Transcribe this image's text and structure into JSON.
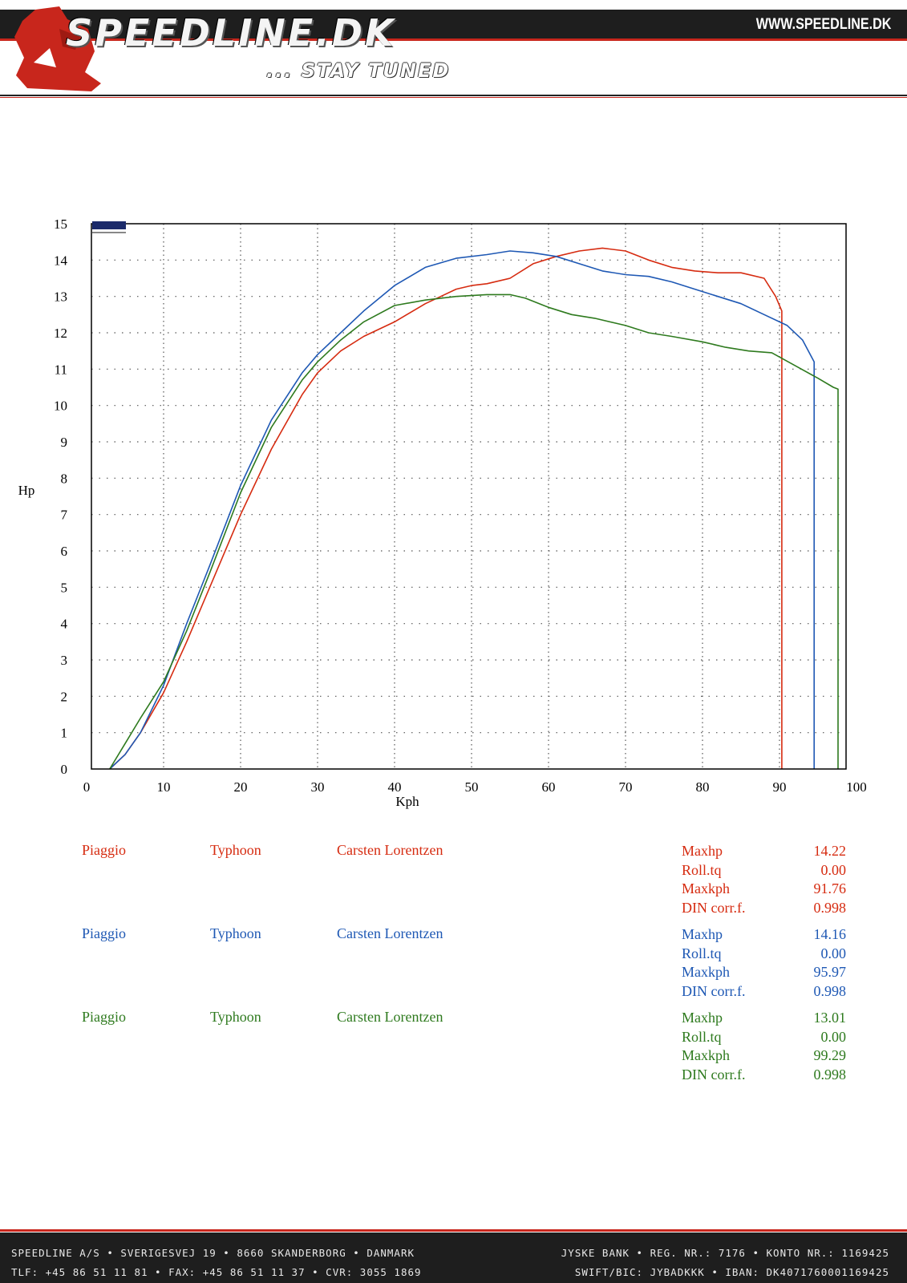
{
  "header": {
    "brand": "SPEEDLINE.DK",
    "tagline": "... STAY TUNED",
    "url": "WWW.SPEEDLINE.DK",
    "colors": {
      "band": "#1e1e1e",
      "accent": "#c8261c"
    }
  },
  "chart_data": {
    "type": "line",
    "xlabel": "Kph",
    "ylabel": "Hp",
    "xlim": [
      0,
      100
    ],
    "ylim": [
      0,
      15
    ],
    "xticks": [
      0,
      10,
      20,
      30,
      40,
      50,
      60,
      70,
      80,
      90,
      100
    ],
    "yticks": [
      0,
      1,
      2,
      3,
      4,
      5,
      6,
      7,
      8,
      9,
      10,
      11,
      12,
      13,
      14,
      15
    ],
    "grid": true,
    "legend": "none",
    "series": [
      {
        "color": "#d62b10",
        "x": [
          3,
          5,
          7,
          10,
          13,
          16,
          20,
          24,
          28,
          30,
          33,
          36,
          40,
          44,
          46,
          48,
          50,
          52,
          55,
          58,
          61,
          64,
          67,
          70,
          73,
          76,
          79,
          82,
          85,
          88,
          89.5,
          90.3,
          90.3
        ],
        "y": [
          0,
          0.4,
          1.0,
          2.1,
          3.5,
          5.0,
          7.0,
          8.8,
          10.3,
          10.9,
          11.5,
          11.9,
          12.3,
          12.8,
          13.0,
          13.2,
          13.3,
          13.35,
          13.5,
          13.9,
          14.1,
          14.25,
          14.33,
          14.25,
          14.0,
          13.8,
          13.7,
          13.65,
          13.65,
          13.5,
          13.0,
          12.6,
          0
        ]
      },
      {
        "color": "#1e58b4",
        "x": [
          3,
          5,
          7,
          10,
          13,
          16,
          20,
          24,
          28,
          30,
          33,
          36,
          40,
          44,
          48,
          52,
          55,
          58,
          61,
          64,
          67,
          70,
          73,
          76,
          79,
          82,
          85,
          88,
          91,
          93,
          94.5,
          94.5
        ],
        "y": [
          0,
          0.4,
          1.0,
          2.3,
          4.0,
          5.6,
          7.8,
          9.6,
          10.9,
          11.4,
          12.0,
          12.6,
          13.3,
          13.8,
          14.05,
          14.15,
          14.25,
          14.2,
          14.1,
          13.9,
          13.7,
          13.6,
          13.55,
          13.4,
          13.2,
          13.0,
          12.8,
          12.5,
          12.2,
          11.8,
          11.2,
          0
        ]
      },
      {
        "color": "#2e7a1e",
        "x": [
          3,
          5,
          7,
          10,
          13,
          16,
          20,
          24,
          28,
          30,
          33,
          36,
          40,
          44,
          48,
          52,
          55,
          57,
          60,
          63,
          66,
          70,
          73,
          76,
          80,
          83,
          86,
          89,
          92,
          95,
          97,
          97.6,
          97.6
        ],
        "y": [
          0,
          0.7,
          1.4,
          2.4,
          3.8,
          5.4,
          7.6,
          9.4,
          10.7,
          11.2,
          11.8,
          12.3,
          12.75,
          12.9,
          13.0,
          13.05,
          13.05,
          12.95,
          12.7,
          12.5,
          12.4,
          12.2,
          12.0,
          11.9,
          11.75,
          11.6,
          11.5,
          11.45,
          11.1,
          10.75,
          10.5,
          10.45,
          0
        ]
      }
    ]
  },
  "runs": [
    {
      "color": "#d62b10",
      "make": "Piaggio",
      "model": "Typhoon",
      "owner": "Carsten Lorentzen",
      "stats": [
        {
          "label": "Maxhp",
          "value": "14.22"
        },
        {
          "label": "Roll.tq",
          "value": "0.00"
        },
        {
          "label": "Maxkph",
          "value": "91.76"
        },
        {
          "label": "DIN corr.f.",
          "value": "0.998"
        }
      ]
    },
    {
      "color": "#1e58b4",
      "make": "Piaggio",
      "model": "Typhoon",
      "owner": "Carsten Lorentzen",
      "stats": [
        {
          "label": "Maxhp",
          "value": "14.16"
        },
        {
          "label": "Roll.tq",
          "value": "0.00"
        },
        {
          "label": "Maxkph",
          "value": "95.97"
        },
        {
          "label": "DIN corr.f.",
          "value": "0.998"
        }
      ]
    },
    {
      "color": "#2e7a1e",
      "make": "Piaggio",
      "model": "Typhoon",
      "owner": "Carsten Lorentzen",
      "stats": [
        {
          "label": "Maxhp",
          "value": "13.01"
        },
        {
          "label": "Roll.tq",
          "value": "0.00"
        },
        {
          "label": "Maxkph",
          "value": "99.29"
        },
        {
          "label": "DIN corr.f.",
          "value": "0.998"
        }
      ]
    }
  ],
  "footer": {
    "line1_left": "SPEEDLINE A/S • SVERIGESVEJ 19 • 8660 SKANDERBORG • DANMARK",
    "line1_right": "JYSKE BANK • REG. NR.: 7176 • KONTO NR.: 1169425",
    "line2_left": "TLF: +45 86 51 11 81 • FAX: +45 86 51 11 37 • CVR: 3055 1869",
    "line2_right": "SWIFT/BIC: JYBADKKK • IBAN: DK4071760001169425"
  }
}
